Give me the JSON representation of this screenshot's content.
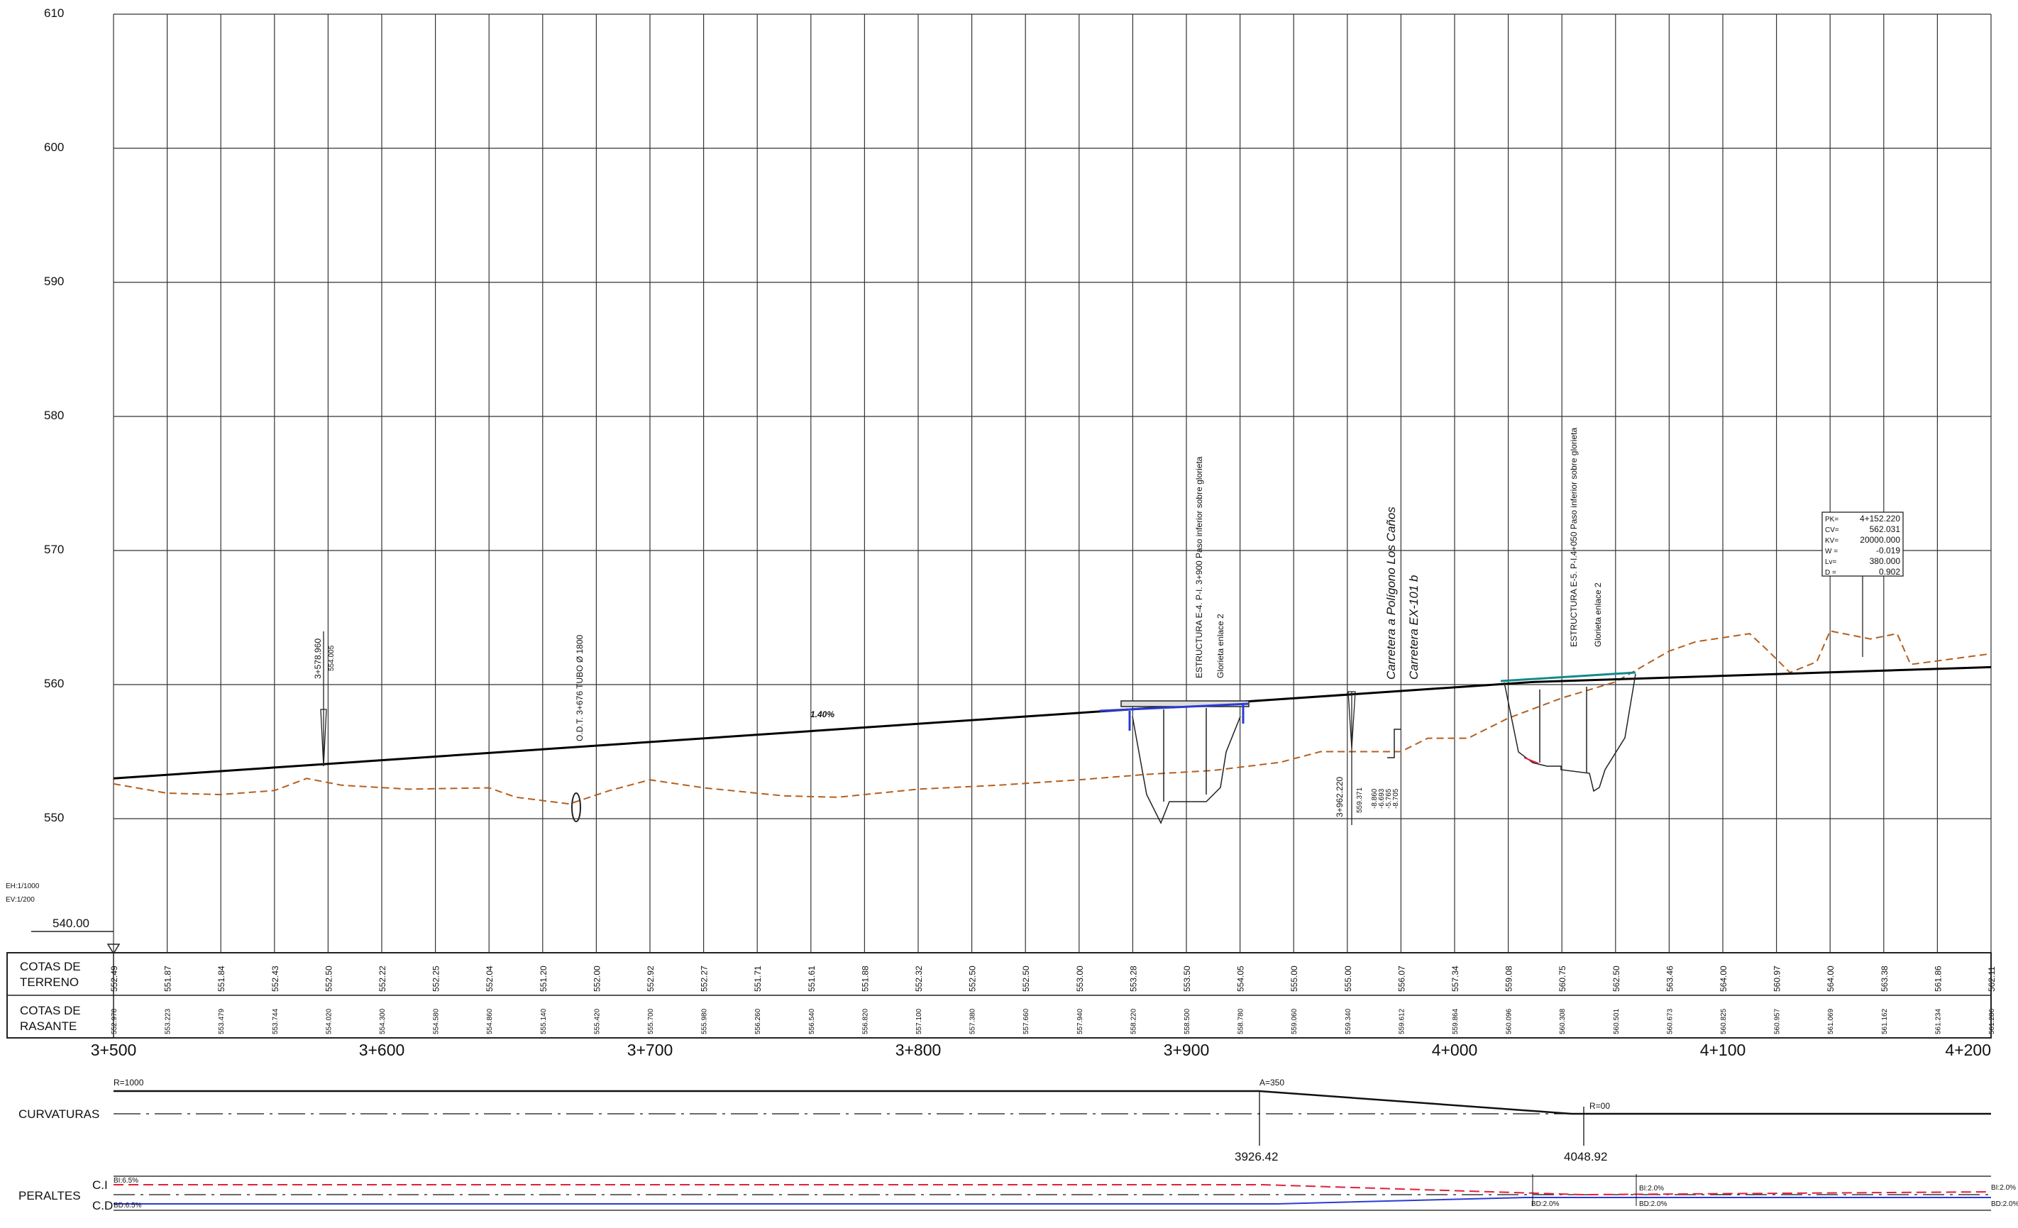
{
  "scale": {
    "horizontal": "EH:1/1000",
    "vertical": "EV:1/200",
    "datum": "540.00"
  },
  "elevation_axis": [
    "610",
    "600",
    "590",
    "580",
    "570",
    "560",
    "550"
  ],
  "grid_min": 540,
  "grid_max": 610,
  "x_min": 3500,
  "x_max": 4200,
  "x_step": 20,
  "kp_labels": [
    "3+500",
    "3+600",
    "3+700",
    "3+800",
    "3+900",
    "4+000",
    "4+100",
    "4+200"
  ],
  "rows": {
    "terrain_title": "COTAS DE TERRENO",
    "grade_title": "COTAS DE RASANTE"
  },
  "terrain": [
    "552.49",
    "551.87",
    "551.84",
    "552.43",
    "552.50",
    "552.22",
    "552.25",
    "552.04",
    "551.20",
    "552.00",
    "552.92",
    "552.27",
    "551.71",
    "551.61",
    "551.88",
    "552.32",
    "552.50",
    "552.50",
    "553.00",
    "553.28",
    "553.50",
    "554.05",
    "555.00",
    "555.00",
    "556.07",
    "557.34",
    "559.08",
    "560.75",
    "562.50",
    "563.46",
    "564.00",
    "560.97",
    "564.00",
    "563.38",
    "561.86",
    "562.11"
  ],
  "grade": [
    "552.978",
    "553.223",
    "553.479",
    "553.744",
    "554.020",
    "554.300",
    "554.580",
    "554.860",
    "555.140",
    "555.420",
    "555.700",
    "555.980",
    "556.260",
    "556.540",
    "556.820",
    "557.100",
    "557.380",
    "557.660",
    "557.940",
    "558.220",
    "558.500",
    "558.780",
    "559.060",
    "559.340",
    "559.612",
    "559.864",
    "560.096",
    "560.308",
    "560.501",
    "560.673",
    "560.825",
    "560.957",
    "561.069",
    "561.162",
    "561.234",
    "561.286"
  ],
  "profile": {
    "grade_line": [
      [
        3500,
        553.0
      ],
      [
        4030,
        560.2
      ],
      [
        4200,
        561.3
      ]
    ],
    "ground_line": [
      [
        3500,
        552.6
      ],
      [
        3520,
        551.9
      ],
      [
        3540,
        551.8
      ],
      [
        3560,
        552.1
      ],
      [
        3572,
        553.0
      ],
      [
        3585,
        552.5
      ],
      [
        3610,
        552.2
      ],
      [
        3640,
        552.3
      ],
      [
        3650,
        551.6
      ],
      [
        3670,
        551.1
      ],
      [
        3685,
        552.1
      ],
      [
        3700,
        552.9
      ],
      [
        3720,
        552.3
      ],
      [
        3750,
        551.7
      ],
      [
        3770,
        551.6
      ],
      [
        3800,
        552.2
      ],
      [
        3830,
        552.5
      ],
      [
        3860,
        552.9
      ],
      [
        3885,
        553.3
      ],
      [
        3910,
        553.6
      ],
      [
        3935,
        554.2
      ],
      [
        3950,
        555.0
      ],
      [
        3980,
        555.0
      ],
      [
        3990,
        556.0
      ],
      [
        4005,
        556.0
      ],
      [
        4020,
        557.5
      ],
      [
        4040,
        559.0
      ],
      [
        4060,
        560.2
      ],
      [
        4080,
        562.5
      ],
      [
        4090,
        563.2
      ],
      [
        4110,
        563.8
      ],
      [
        4117,
        562.5
      ],
      [
        4125,
        560.9
      ],
      [
        4135,
        561.7
      ],
      [
        4140,
        564.0
      ],
      [
        4155,
        563.4
      ],
      [
        4165,
        563.8
      ],
      [
        4170,
        561.5
      ],
      [
        4200,
        562.3
      ]
    ],
    "slope_label": "1.40%"
  },
  "annotations": {
    "odt": "O.D.T. 3+676 TUBO Ø 1800",
    "pk_mark": "3+578.960",
    "pk_mark_elev": "554.005",
    "struct_e4_line1": "ESTRUCTURA E-4. P-I. 3+900 Paso inferior sobre glorieta",
    "struct_e4_line2": "Glorieta enlace 2",
    "road_line1": "Carretera a Polígono Los Caños",
    "road_line2": "Carretera EX-101 b",
    "cross_pk": "3+962.220",
    "cross_elev": "559.371",
    "cross_vals": [
      "-5.765",
      "-8.705",
      "-8.860",
      "-6.693"
    ],
    "struct_e5_line1": "ESTRUCTURA E-5. P-I.4+050 Paso inferior sobre glorieta",
    "struct_e5_line2": "Glorieta enlace 2"
  },
  "vertical_curve": {
    "keys": [
      "PK=",
      "CV=",
      "KV=",
      "W =",
      "Lv=",
      "D ="
    ],
    "values": [
      "4+152.220",
      "562.031",
      "20000.000",
      "-0.019",
      "380.000",
      "0.902"
    ]
  },
  "curvatures": {
    "title": "CURVATURAS",
    "radius1": "R=1000",
    "clothoid": "A=350",
    "radius2": "R=00",
    "station1": "3926.42",
    "station2": "4048.92"
  },
  "superelevation": {
    "title": "PERALTES",
    "ci": "C.I",
    "cd": "C.D",
    "bi_left": "BI:6.5%",
    "bd_left": "BD:6.5%",
    "bi_mid": "BI:2.0%",
    "bd_mid1": "BD:2.0%",
    "bd_mid2": "BD:2.0%",
    "bi_right": "BI:2.0%",
    "bd_right": "BD:2.0%"
  },
  "colors": {
    "ground": "#b45f1e",
    "grade": "#000000",
    "structure_blue": "#2b3bd6",
    "ci_red": "#e0203a",
    "cd_blue": "#2b3bd6",
    "teal": "#138a8a"
  }
}
